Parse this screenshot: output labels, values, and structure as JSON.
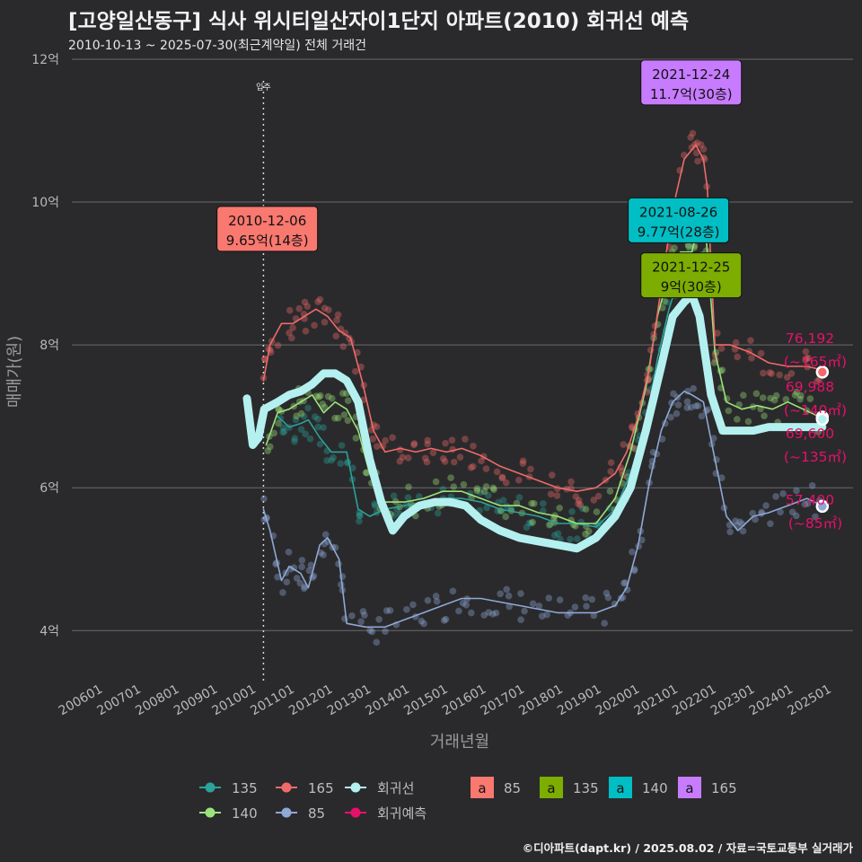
{
  "title": "[고양일산동구] 식사 위시티일산자이1단지 아파트(2010) 회귀선 예측",
  "subtitle": "2010-10-13 ~ 2025-07-30(최근계약일) 전체 거래건",
  "footer": "©디아파트(dapt.kr) / 2025.08.02 / 자료=국토교통부 실거래가",
  "colors": {
    "background": "#2a2a2c",
    "s85": "#8fa8d6",
    "s135": "#2aa39a",
    "s140": "#9be37a",
    "s165": "#f06a6a",
    "regression": "#b4f0ef",
    "prediction": "#e8106a",
    "box85": "#f9786f",
    "box135": "#7cad00",
    "box140": "#00bec4",
    "box165": "#c77cff"
  },
  "chart_data": {
    "type": "line",
    "xlabel": "거래년월",
    "ylabel": "매매가(원)",
    "ylim": [
      3.4,
      12.1
    ],
    "x_ticks": [
      "200601",
      "200701",
      "200801",
      "200901",
      "201001",
      "201101",
      "201201",
      "201301",
      "201401",
      "201501",
      "201601",
      "201701",
      "201801",
      "201901",
      "202001",
      "202101",
      "202201",
      "202301",
      "202401",
      "202501"
    ],
    "y_ticks": [
      {
        "v": 4,
        "label": "4억"
      },
      {
        "v": 6,
        "label": "6억"
      },
      {
        "v": 8,
        "label": "8억"
      },
      {
        "v": 10,
        "label": "10억"
      },
      {
        "v": 12,
        "label": "12억"
      }
    ],
    "move_in": {
      "x": 2010.83,
      "label": "입주"
    },
    "series": [
      {
        "name": "85",
        "key": "s85",
        "values": [
          [
            2010.83,
            5.7
          ],
          [
            2011.0,
            5.4
          ],
          [
            2011.3,
            4.7
          ],
          [
            2011.5,
            4.9
          ],
          [
            2011.8,
            4.8
          ],
          [
            2012.0,
            4.6
          ],
          [
            2012.3,
            5.2
          ],
          [
            2012.5,
            5.3
          ],
          [
            2012.8,
            5.0
          ],
          [
            2013.0,
            4.1
          ],
          [
            2013.5,
            4.05
          ],
          [
            2014.0,
            4.05
          ],
          [
            2014.5,
            4.15
          ],
          [
            2015.0,
            4.25
          ],
          [
            2015.5,
            4.35
          ],
          [
            2016.0,
            4.45
          ],
          [
            2016.5,
            4.45
          ],
          [
            2017.0,
            4.4
          ],
          [
            2017.5,
            4.35
          ],
          [
            2018.0,
            4.3
          ],
          [
            2018.5,
            4.25
          ],
          [
            2019.0,
            4.25
          ],
          [
            2019.5,
            4.25
          ],
          [
            2020.0,
            4.35
          ],
          [
            2020.3,
            4.6
          ],
          [
            2020.6,
            5.2
          ],
          [
            2020.9,
            6.1
          ],
          [
            2021.2,
            6.8
          ],
          [
            2021.5,
            7.2
          ],
          [
            2021.8,
            7.35
          ],
          [
            2022.0,
            7.3
          ],
          [
            2022.3,
            7.2
          ],
          [
            2022.6,
            6.4
          ],
          [
            2022.9,
            5.6
          ],
          [
            2023.2,
            5.4
          ],
          [
            2023.6,
            5.6
          ],
          [
            2024.0,
            5.65
          ],
          [
            2024.5,
            5.75
          ],
          [
            2025.0,
            5.85
          ],
          [
            2025.4,
            5.75
          ]
        ]
      },
      {
        "name": "135",
        "key": "s135",
        "values": [
          [
            2011.2,
            7.0
          ],
          [
            2011.5,
            6.85
          ],
          [
            2011.8,
            6.9
          ],
          [
            2012.0,
            6.95
          ],
          [
            2012.3,
            6.7
          ],
          [
            2012.6,
            6.5
          ],
          [
            2013.0,
            6.5
          ],
          [
            2013.3,
            5.7
          ],
          [
            2013.6,
            5.6
          ],
          [
            2014.0,
            5.7
          ],
          [
            2014.5,
            5.75
          ],
          [
            2015.0,
            5.8
          ],
          [
            2015.5,
            5.85
          ],
          [
            2016.0,
            5.85
          ],
          [
            2016.5,
            5.8
          ],
          [
            2017.0,
            5.7
          ],
          [
            2017.5,
            5.65
          ],
          [
            2018.0,
            5.6
          ],
          [
            2018.5,
            5.5
          ],
          [
            2019.0,
            5.5
          ],
          [
            2019.5,
            5.45
          ],
          [
            2020.0,
            5.7
          ],
          [
            2020.4,
            6.2
          ],
          [
            2020.8,
            6.9
          ],
          [
            2021.1,
            7.8
          ],
          [
            2021.4,
            8.5
          ],
          [
            2021.7,
            9.0
          ],
          [
            2022.0,
            9.25
          ],
          [
            2022.3,
            9.3
          ]
        ]
      },
      {
        "name": "140",
        "key": "s140",
        "values": [
          [
            2010.9,
            6.6
          ],
          [
            2011.2,
            7.05
          ],
          [
            2011.5,
            7.1
          ],
          [
            2011.8,
            7.2
          ],
          [
            2012.1,
            7.3
          ],
          [
            2012.4,
            7.05
          ],
          [
            2012.7,
            7.2
          ],
          [
            2013.0,
            7.1
          ],
          [
            2013.3,
            6.8
          ],
          [
            2013.6,
            6.2
          ],
          [
            2014.0,
            5.8
          ],
          [
            2014.5,
            5.8
          ],
          [
            2015.0,
            5.85
          ],
          [
            2015.5,
            5.95
          ],
          [
            2016.0,
            5.95
          ],
          [
            2016.5,
            5.85
          ],
          [
            2017.0,
            5.75
          ],
          [
            2017.5,
            5.75
          ],
          [
            2018.0,
            5.65
          ],
          [
            2018.5,
            5.6
          ],
          [
            2019.0,
            5.5
          ],
          [
            2019.5,
            5.5
          ],
          [
            2020.0,
            5.85
          ],
          [
            2020.4,
            6.5
          ],
          [
            2020.8,
            7.4
          ],
          [
            2021.1,
            8.4
          ],
          [
            2021.4,
            9.0
          ],
          [
            2021.7,
            9.3
          ],
          [
            2022.0,
            9.3
          ],
          [
            2022.3,
            10.0
          ],
          [
            2022.6,
            7.9
          ],
          [
            2022.9,
            7.2
          ],
          [
            2023.3,
            7.1
          ],
          [
            2023.7,
            7.15
          ],
          [
            2024.1,
            7.1
          ],
          [
            2024.5,
            7.2
          ],
          [
            2024.9,
            7.1
          ],
          [
            2025.3,
            7.0
          ]
        ]
      },
      {
        "name": "165",
        "key": "s165",
        "values": [
          [
            2010.83,
            7.5
          ],
          [
            2011.0,
            8.0
          ],
          [
            2011.3,
            8.3
          ],
          [
            2011.6,
            8.3
          ],
          [
            2011.9,
            8.4
          ],
          [
            2012.2,
            8.5
          ],
          [
            2012.5,
            8.4
          ],
          [
            2012.8,
            8.2
          ],
          [
            2013.1,
            8.1
          ],
          [
            2013.4,
            7.5
          ],
          [
            2013.7,
            6.8
          ],
          [
            2014.0,
            6.5
          ],
          [
            2014.4,
            6.55
          ],
          [
            2014.8,
            6.5
          ],
          [
            2015.2,
            6.55
          ],
          [
            2015.6,
            6.5
          ],
          [
            2016.0,
            6.55
          ],
          [
            2016.5,
            6.45
          ],
          [
            2017.0,
            6.3
          ],
          [
            2017.5,
            6.2
          ],
          [
            2018.0,
            6.1
          ],
          [
            2018.5,
            6.0
          ],
          [
            2019.0,
            5.95
          ],
          [
            2019.5,
            6.0
          ],
          [
            2020.0,
            6.2
          ],
          [
            2020.3,
            6.5
          ],
          [
            2020.6,
            7.0
          ],
          [
            2020.9,
            7.7
          ],
          [
            2021.2,
            8.8
          ],
          [
            2021.5,
            9.9
          ],
          [
            2021.8,
            10.6
          ],
          [
            2022.1,
            10.8
          ],
          [
            2022.3,
            10.6
          ],
          [
            2022.4,
            10.2
          ],
          [
            2022.6,
            8.0
          ],
          [
            2023.0,
            8.0
          ],
          [
            2023.5,
            7.9
          ],
          [
            2024.0,
            7.75
          ],
          [
            2024.5,
            7.7
          ],
          [
            2025.0,
            7.7
          ],
          [
            2025.4,
            7.65
          ]
        ]
      },
      {
        "name": "회귀선",
        "key": "regression",
        "values": [
          [
            2010.4,
            7.25
          ],
          [
            2010.55,
            6.6
          ],
          [
            2010.7,
            6.7
          ],
          [
            2010.85,
            7.1
          ],
          [
            2011.2,
            7.2
          ],
          [
            2011.5,
            7.3
          ],
          [
            2011.8,
            7.35
          ],
          [
            2012.1,
            7.45
          ],
          [
            2012.4,
            7.6
          ],
          [
            2012.7,
            7.6
          ],
          [
            2013.0,
            7.5
          ],
          [
            2013.3,
            7.2
          ],
          [
            2013.6,
            6.4
          ],
          [
            2013.9,
            5.8
          ],
          [
            2014.2,
            5.4
          ],
          [
            2014.5,
            5.6
          ],
          [
            2014.9,
            5.75
          ],
          [
            2015.3,
            5.8
          ],
          [
            2015.7,
            5.8
          ],
          [
            2016.1,
            5.75
          ],
          [
            2016.5,
            5.55
          ],
          [
            2017.0,
            5.4
          ],
          [
            2017.5,
            5.3
          ],
          [
            2018.0,
            5.25
          ],
          [
            2018.5,
            5.2
          ],
          [
            2019.0,
            5.15
          ],
          [
            2019.5,
            5.3
          ],
          [
            2020.0,
            5.6
          ],
          [
            2020.4,
            6.0
          ],
          [
            2020.8,
            6.8
          ],
          [
            2021.2,
            7.7
          ],
          [
            2021.5,
            8.4
          ],
          [
            2021.8,
            8.6
          ],
          [
            2022.0,
            8.7
          ],
          [
            2022.2,
            8.4
          ],
          [
            2022.5,
            7.3
          ],
          [
            2022.8,
            6.8
          ],
          [
            2023.2,
            6.8
          ],
          [
            2023.6,
            6.8
          ],
          [
            2024.0,
            6.85
          ],
          [
            2024.5,
            6.85
          ],
          [
            2025.0,
            6.85
          ],
          [
            2025.4,
            6.85
          ]
        ]
      }
    ],
    "predictions": [
      {
        "x": 2025.4,
        "y": 7.62,
        "key": "s165",
        "label": [
          "76,192",
          "(~165㎡)"
        ]
      },
      {
        "x": 2025.4,
        "y": 6.99,
        "key": "s140",
        "label": [
          "69,988",
          "(~140㎡)"
        ]
      },
      {
        "x": 2025.4,
        "y": 6.96,
        "key": "regression",
        "label": [
          "69,600",
          "(~135㎡)"
        ]
      },
      {
        "x": 2025.4,
        "y": 5.74,
        "key": "s85",
        "label": [
          "57,400",
          "(~85㎡)"
        ]
      }
    ],
    "annotations": [
      {
        "date": "2010-12-06",
        "value": "9.65억(14층)",
        "boxKey": "box85",
        "x": 2010.93,
        "y": 9.65
      },
      {
        "date": "2021-12-24",
        "value": "11.7억(30층)",
        "boxKey": "box165",
        "x": 2021.98,
        "y": 11.7
      },
      {
        "date": "2021-08-26",
        "value": "9.77억(28층)",
        "boxKey": "box140",
        "x": 2021.65,
        "y": 9.77
      },
      {
        "date": "2021-12-25",
        "value": "9억(30층)",
        "boxKey": "box135",
        "x": 2021.98,
        "y": 9.0
      }
    ],
    "legend": {
      "lines": [
        {
          "key": "s135",
          "label": "135"
        },
        {
          "key": "s165",
          "label": "165"
        },
        {
          "key": "regression",
          "label": "회귀선"
        },
        {
          "key": "s140",
          "label": "140"
        },
        {
          "key": "s85",
          "label": "85"
        },
        {
          "key": "prediction",
          "label": "회귀예측"
        }
      ],
      "boxes": [
        {
          "key": "box85",
          "label": "85"
        },
        {
          "key": "box135",
          "label": "135"
        },
        {
          "key": "box140",
          "label": "140"
        },
        {
          "key": "box165",
          "label": "165"
        }
      ],
      "box_glyph": "a",
      "placement": "bottom"
    }
  }
}
